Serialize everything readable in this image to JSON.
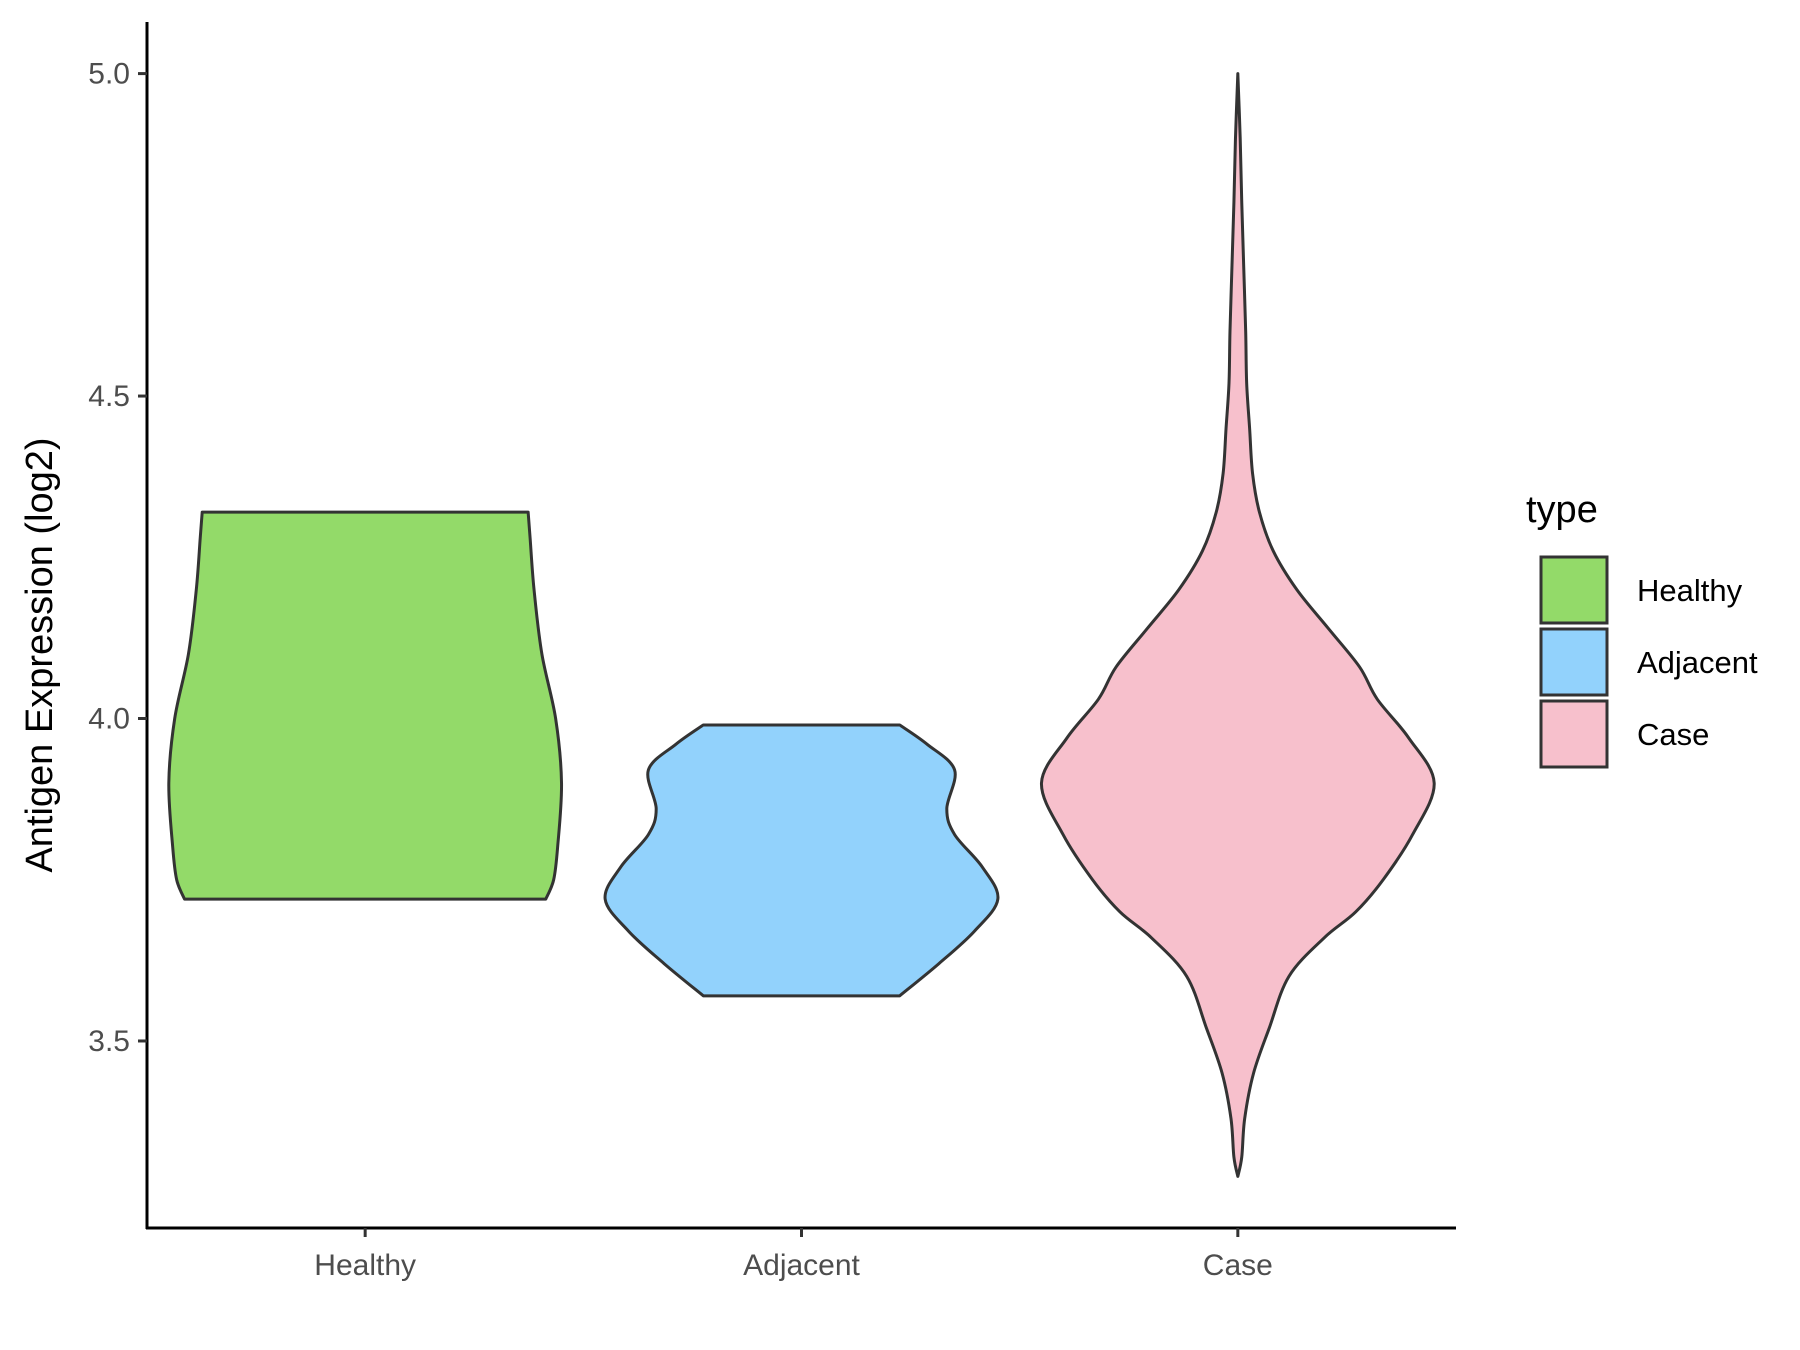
{
  "chart_data": {
    "type": "violin",
    "title": "",
    "xlabel": "",
    "ylabel": "Antigen Expression (log2)",
    "ylim": [
      3.21,
      5.08
    ],
    "yticks": [
      3.5,
      4.0,
      4.5,
      5.0
    ],
    "ytick_labels": [
      "3.5",
      "4.0",
      "4.5",
      "5.0"
    ],
    "categories": [
      "Healthy",
      "Adjacent",
      "Case"
    ],
    "grid": false,
    "legend": {
      "title": "type",
      "position": "right",
      "entries": [
        "Healthy",
        "Adjacent",
        "Case"
      ]
    },
    "series": [
      {
        "name": "Healthy",
        "color": "#93DA69",
        "y_min": 3.72,
        "y_max": 4.32,
        "density": [
          [
            3.72,
            0.92
          ],
          [
            3.75,
            0.96
          ],
          [
            3.8,
            0.98
          ],
          [
            3.9,
            1.0
          ],
          [
            4.0,
            0.97
          ],
          [
            4.1,
            0.9
          ],
          [
            4.2,
            0.86
          ],
          [
            4.28,
            0.84
          ],
          [
            4.32,
            0.83
          ]
        ]
      },
      {
        "name": "Adjacent",
        "color": "#92D2FC",
        "y_min": 3.57,
        "y_max": 3.99,
        "density": [
          [
            3.57,
            0.5
          ],
          [
            3.62,
            0.7
          ],
          [
            3.67,
            0.88
          ],
          [
            3.72,
            1.0
          ],
          [
            3.77,
            0.92
          ],
          [
            3.82,
            0.78
          ],
          [
            3.86,
            0.74
          ],
          [
            3.92,
            0.78
          ],
          [
            3.96,
            0.64
          ],
          [
            3.99,
            0.5
          ]
        ]
      },
      {
        "name": "Case",
        "color": "#F7C0CC",
        "y_min": 3.29,
        "y_max": 5.0,
        "density": [
          [
            3.29,
            0.0
          ],
          [
            3.32,
            0.02
          ],
          [
            3.38,
            0.035
          ],
          [
            3.45,
            0.08
          ],
          [
            3.52,
            0.16
          ],
          [
            3.6,
            0.26
          ],
          [
            3.66,
            0.44
          ],
          [
            3.7,
            0.6
          ],
          [
            3.75,
            0.74
          ],
          [
            3.82,
            0.89
          ],
          [
            3.9,
            1.0
          ],
          [
            3.97,
            0.87
          ],
          [
            4.03,
            0.71
          ],
          [
            4.08,
            0.62
          ],
          [
            4.14,
            0.46
          ],
          [
            4.2,
            0.3
          ],
          [
            4.26,
            0.18
          ],
          [
            4.32,
            0.11
          ],
          [
            4.38,
            0.075
          ],
          [
            4.45,
            0.06
          ],
          [
            4.52,
            0.045
          ],
          [
            4.6,
            0.04
          ],
          [
            4.7,
            0.03
          ],
          [
            4.8,
            0.02
          ],
          [
            4.9,
            0.012
          ],
          [
            5.0,
            0.0
          ]
        ]
      }
    ]
  }
}
